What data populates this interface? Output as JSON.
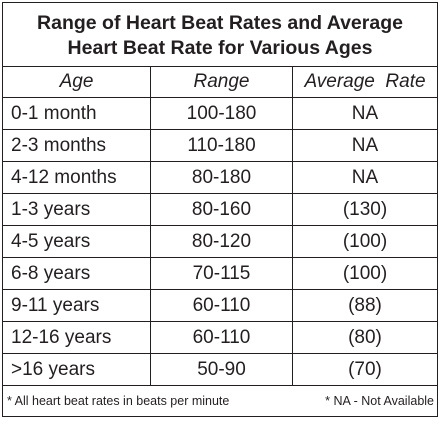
{
  "title": {
    "line1": "Range of Heart Beat Rates and Average",
    "line2": "Heart Beat Rate for Various Ages"
  },
  "columns": [
    "Age",
    "Range",
    "Average  Rate"
  ],
  "rows": [
    {
      "age": "0-1 month",
      "range": "100-180",
      "average": "NA"
    },
    {
      "age": "2-3 months",
      "range": "110-180",
      "average": "NA"
    },
    {
      "age": "4-12 months",
      "range": "80-180",
      "average": "NA"
    },
    {
      "age": "1-3 years",
      "range": "80-160",
      "average": "(130)"
    },
    {
      "age": "4-5 years",
      "range": "80-120",
      "average": "(100)"
    },
    {
      "age": "6-8 years",
      "range": "70-115",
      "average": "(100)"
    },
    {
      "age": "9-11 years",
      "range": "60-110",
      "average": "(88)"
    },
    {
      "age": "12-16 years",
      "range": "60-110",
      "average": "(80)"
    },
    {
      "age": ">16 years",
      "range": "50-90",
      "average": "(70)"
    }
  ],
  "footer": {
    "left": "* All heart beat rates in beats per minute",
    "right": "* NA - Not Available"
  }
}
